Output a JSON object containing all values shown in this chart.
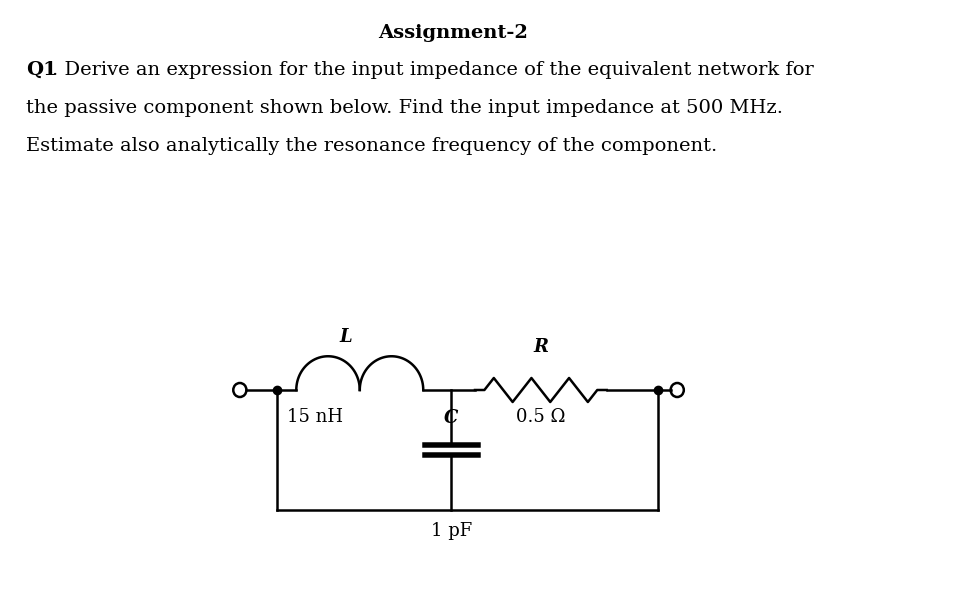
{
  "title": "Assignment-2",
  "title_fontsize": 14,
  "q1_fontsize": 14,
  "bg_color": "#ffffff",
  "circuit_color": "#000000",
  "label_L": "L",
  "label_R": "R",
  "label_C": "C",
  "label_15nH": "15 nH",
  "label_05ohm": "0.5 Ω",
  "label_1pF": "1 pF",
  "line1": ". Derive an expression for the input impedance of the equivalent network for",
  "line2": "the passive component shown below. Find the input impedance at 500 MHz.",
  "line3": "Estimate also analytically the resonance frequency of the component."
}
